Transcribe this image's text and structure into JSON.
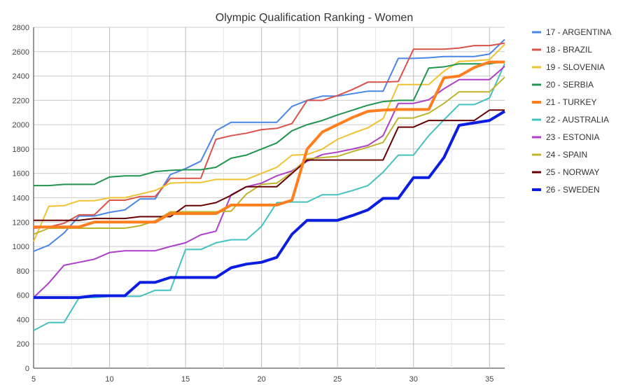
{
  "chart_data": {
    "type": "line",
    "title": "Olympic Qualification Ranking - Women",
    "xlabel": "",
    "ylabel": "",
    "xlim": [
      5,
      36
    ],
    "ylim": [
      0,
      2800
    ],
    "xticks": [
      5,
      10,
      15,
      20,
      25,
      30,
      35
    ],
    "yticks": [
      0,
      200,
      400,
      600,
      800,
      1000,
      1200,
      1400,
      1600,
      1800,
      2000,
      2200,
      2400,
      2600,
      2800
    ],
    "grid": true,
    "legend_position": "right",
    "x": [
      5,
      6,
      7,
      8,
      9,
      10,
      11,
      12,
      13,
      14,
      15,
      16,
      17,
      18,
      19,
      20,
      21,
      22,
      23,
      24,
      25,
      26,
      27,
      28,
      29,
      30,
      31,
      32,
      33,
      34,
      35,
      36
    ],
    "series": [
      {
        "name": "17 - ARGENTINA",
        "color": "#4a86e8",
        "bold": false,
        "values": [
          960,
          1010,
          1110,
          1250,
          1250,
          1280,
          1300,
          1390,
          1390,
          1590,
          1640,
          1700,
          1950,
          2020,
          2020,
          2020,
          2020,
          2150,
          2200,
          2235,
          2235,
          2255,
          2275,
          2275,
          2545,
          2545,
          2550,
          2560,
          2560,
          2560,
          2580,
          2700
        ]
      },
      {
        "name": "18 - BRAZIL",
        "color": "#d9534a",
        "bold": false,
        "values": [
          1150,
          1160,
          1190,
          1260,
          1260,
          1380,
          1380,
          1410,
          1410,
          1560,
          1560,
          1560,
          1880,
          1910,
          1930,
          1960,
          1970,
          2010,
          2200,
          2200,
          2240,
          2290,
          2350,
          2350,
          2355,
          2620,
          2620,
          2620,
          2630,
          2650,
          2650,
          2670
        ]
      },
      {
        "name": "19 - SLOVENIA",
        "color": "#f1c232",
        "bold": false,
        "values": [
          1040,
          1330,
          1335,
          1375,
          1375,
          1400,
          1400,
          1430,
          1460,
          1520,
          1525,
          1525,
          1550,
          1550,
          1550,
          1600,
          1650,
          1750,
          1755,
          1800,
          1880,
          1930,
          1975,
          2050,
          2330,
          2330,
          2330,
          2440,
          2520,
          2525,
          2535,
          2660
        ]
      },
      {
        "name": "20 - SERBIA",
        "color": "#21944e",
        "bold": false,
        "values": [
          1500,
          1500,
          1510,
          1510,
          1510,
          1570,
          1580,
          1580,
          1615,
          1625,
          1630,
          1630,
          1650,
          1725,
          1750,
          1800,
          1850,
          1950,
          2000,
          2035,
          2080,
          2120,
          2160,
          2190,
          2200,
          2200,
          2465,
          2475,
          2500,
          2500,
          2500,
          2520
        ]
      },
      {
        "name": "21 - TURKEY",
        "color": "#ff7f1e",
        "bold": true,
        "values": [
          1160,
          1160,
          1160,
          1160,
          1200,
          1200,
          1200,
          1200,
          1200,
          1270,
          1270,
          1270,
          1270,
          1340,
          1340,
          1340,
          1340,
          1380,
          1800,
          1940,
          2000,
          2060,
          2110,
          2120,
          2125,
          2125,
          2125,
          2385,
          2400,
          2470,
          2515,
          2515
        ]
      },
      {
        "name": "22 - AUSTRALIA",
        "color": "#45c1c1",
        "bold": false,
        "values": [
          310,
          375,
          375,
          580,
          580,
          590,
          590,
          590,
          640,
          640,
          975,
          975,
          1030,
          1055,
          1055,
          1165,
          1360,
          1365,
          1365,
          1425,
          1425,
          1460,
          1500,
          1610,
          1750,
          1750,
          1910,
          2040,
          2165,
          2165,
          2220,
          2500
        ]
      },
      {
        "name": "23 - ESTONIA",
        "color": "#ab3fc8",
        "bold": false,
        "values": [
          580,
          700,
          845,
          870,
          895,
          950,
          965,
          965,
          965,
          1000,
          1030,
          1095,
          1125,
          1425,
          1490,
          1520,
          1580,
          1620,
          1700,
          1755,
          1775,
          1800,
          1830,
          1910,
          2175,
          2175,
          2205,
          2295,
          2370,
          2370,
          2370,
          2480
        ]
      },
      {
        "name": "24 - SPAIN",
        "color": "#bfb32b",
        "bold": false,
        "values": [
          1100,
          1150,
          1150,
          1150,
          1150,
          1150,
          1150,
          1170,
          1210,
          1285,
          1285,
          1285,
          1285,
          1290,
          1430,
          1510,
          1520,
          1610,
          1720,
          1730,
          1740,
          1780,
          1815,
          1855,
          2055,
          2055,
          2095,
          2175,
          2270,
          2270,
          2270,
          2390
        ]
      },
      {
        "name": "25 - NORWAY",
        "color": "#660000",
        "bold": false,
        "values": [
          1215,
          1215,
          1215,
          1215,
          1230,
          1230,
          1230,
          1245,
          1245,
          1245,
          1335,
          1335,
          1360,
          1420,
          1490,
          1490,
          1490,
          1600,
          1710,
          1710,
          1710,
          1710,
          1710,
          1710,
          1980,
          1980,
          2035,
          2035,
          2035,
          2035,
          2120,
          2120
        ]
      },
      {
        "name": "26 - SWEDEN",
        "color": "#0b1de0",
        "bold": true,
        "values": [
          580,
          580,
          580,
          580,
          595,
          595,
          595,
          705,
          705,
          745,
          745,
          745,
          745,
          825,
          855,
          870,
          910,
          1100,
          1215,
          1215,
          1215,
          1255,
          1300,
          1395,
          1395,
          1565,
          1565,
          1730,
          1995,
          2015,
          2035,
          2110
        ]
      }
    ]
  }
}
